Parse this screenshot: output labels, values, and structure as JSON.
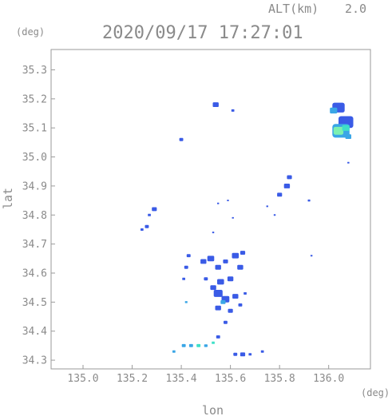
{
  "chart_data": {
    "type": "scatter",
    "title": "2020/09/17 17:27:01",
    "altitude_label": "ALT(km)",
    "altitude_value": "2.0",
    "xlabel": "lon",
    "ylabel": "lat",
    "x_unit": "(deg)",
    "y_unit": "(deg)",
    "xlim": [
      134.87,
      136.17
    ],
    "ylim": [
      34.27,
      35.37
    ],
    "xticks": [
      135.0,
      135.2,
      135.4,
      135.6,
      135.8,
      136.0
    ],
    "xtick_labels": [
      "135.0",
      "135.2",
      "135.4",
      "135.6",
      "135.8",
      "136.0"
    ],
    "yticks": [
      34.3,
      34.4,
      34.5,
      34.6,
      34.7,
      34.8,
      34.9,
      35.0,
      35.1,
      35.2,
      35.3
    ],
    "ytick_labels": [
      "34.3",
      "34.4",
      "34.5",
      "34.6",
      "34.7",
      "34.8",
      "34.9",
      "35.0",
      "35.1",
      "35.2",
      "35.3"
    ],
    "grid": false,
    "colors": {
      "frame": "#9a9a9a",
      "weak": "#3a5be6",
      "moderate": "#3aa6e6",
      "strong": "#3ee0c8",
      "strongest": "#7cf0b0"
    },
    "echo_cells": [
      {
        "lon": 135.54,
        "lat": 35.18,
        "size": 0.012,
        "level": "weak"
      },
      {
        "lon": 135.61,
        "lat": 35.16,
        "size": 0.006,
        "level": "weak"
      },
      {
        "lon": 135.4,
        "lat": 35.06,
        "size": 0.008,
        "level": "weak"
      },
      {
        "lon": 136.04,
        "lat": 35.17,
        "size": 0.025,
        "level": "weak"
      },
      {
        "lon": 136.02,
        "lat": 35.16,
        "size": 0.015,
        "level": "moderate"
      },
      {
        "lon": 136.07,
        "lat": 35.12,
        "size": 0.03,
        "level": "weak"
      },
      {
        "lon": 136.05,
        "lat": 35.09,
        "size": 0.035,
        "level": "moderate"
      },
      {
        "lon": 136.04,
        "lat": 35.09,
        "size": 0.02,
        "level": "strongest"
      },
      {
        "lon": 136.07,
        "lat": 35.1,
        "size": 0.015,
        "level": "strong"
      },
      {
        "lon": 136.08,
        "lat": 35.07,
        "size": 0.012,
        "level": "moderate"
      },
      {
        "lon": 136.08,
        "lat": 34.98,
        "size": 0.004,
        "level": "weak"
      },
      {
        "lon": 135.84,
        "lat": 34.93,
        "size": 0.01,
        "level": "weak"
      },
      {
        "lon": 135.83,
        "lat": 34.9,
        "size": 0.012,
        "level": "weak"
      },
      {
        "lon": 135.8,
        "lat": 34.87,
        "size": 0.01,
        "level": "weak"
      },
      {
        "lon": 135.75,
        "lat": 34.83,
        "size": 0.004,
        "level": "weak"
      },
      {
        "lon": 135.78,
        "lat": 34.8,
        "size": 0.004,
        "level": "weak"
      },
      {
        "lon": 135.92,
        "lat": 34.85,
        "size": 0.005,
        "level": "weak"
      },
      {
        "lon": 135.93,
        "lat": 34.66,
        "size": 0.004,
        "level": "weak"
      },
      {
        "lon": 135.59,
        "lat": 34.85,
        "size": 0.003,
        "level": "weak"
      },
      {
        "lon": 135.61,
        "lat": 34.79,
        "size": 0.003,
        "level": "weak"
      },
      {
        "lon": 135.55,
        "lat": 34.84,
        "size": 0.003,
        "level": "weak"
      },
      {
        "lon": 135.29,
        "lat": 34.82,
        "size": 0.01,
        "level": "weak"
      },
      {
        "lon": 135.27,
        "lat": 34.8,
        "size": 0.006,
        "level": "weak"
      },
      {
        "lon": 135.26,
        "lat": 34.76,
        "size": 0.008,
        "level": "weak"
      },
      {
        "lon": 135.24,
        "lat": 34.75,
        "size": 0.006,
        "level": "weak"
      },
      {
        "lon": 135.53,
        "lat": 34.74,
        "size": 0.004,
        "level": "weak"
      },
      {
        "lon": 135.43,
        "lat": 34.66,
        "size": 0.008,
        "level": "weak"
      },
      {
        "lon": 135.42,
        "lat": 34.62,
        "size": 0.008,
        "level": "weak"
      },
      {
        "lon": 135.41,
        "lat": 34.58,
        "size": 0.006,
        "level": "weak"
      },
      {
        "lon": 135.49,
        "lat": 34.64,
        "size": 0.012,
        "level": "weak"
      },
      {
        "lon": 135.52,
        "lat": 34.65,
        "size": 0.014,
        "level": "weak"
      },
      {
        "lon": 135.55,
        "lat": 34.62,
        "size": 0.012,
        "level": "weak"
      },
      {
        "lon": 135.58,
        "lat": 34.64,
        "size": 0.01,
        "level": "weak"
      },
      {
        "lon": 135.62,
        "lat": 34.66,
        "size": 0.014,
        "level": "weak"
      },
      {
        "lon": 135.65,
        "lat": 34.67,
        "size": 0.01,
        "level": "weak"
      },
      {
        "lon": 135.64,
        "lat": 34.62,
        "size": 0.012,
        "level": "weak"
      },
      {
        "lon": 135.6,
        "lat": 34.58,
        "size": 0.012,
        "level": "weak"
      },
      {
        "lon": 135.56,
        "lat": 34.57,
        "size": 0.014,
        "level": "weak"
      },
      {
        "lon": 135.53,
        "lat": 34.55,
        "size": 0.012,
        "level": "weak"
      },
      {
        "lon": 135.5,
        "lat": 34.58,
        "size": 0.008,
        "level": "weak"
      },
      {
        "lon": 135.55,
        "lat": 34.53,
        "size": 0.018,
        "level": "weak"
      },
      {
        "lon": 135.58,
        "lat": 34.51,
        "size": 0.016,
        "level": "weak"
      },
      {
        "lon": 135.62,
        "lat": 34.52,
        "size": 0.012,
        "level": "weak"
      },
      {
        "lon": 135.57,
        "lat": 34.5,
        "size": 0.01,
        "level": "moderate"
      },
      {
        "lon": 135.55,
        "lat": 34.48,
        "size": 0.012,
        "level": "weak"
      },
      {
        "lon": 135.6,
        "lat": 34.47,
        "size": 0.01,
        "level": "weak"
      },
      {
        "lon": 135.64,
        "lat": 34.49,
        "size": 0.008,
        "level": "weak"
      },
      {
        "lon": 135.66,
        "lat": 34.53,
        "size": 0.006,
        "level": "weak"
      },
      {
        "lon": 135.58,
        "lat": 34.43,
        "size": 0.008,
        "level": "weak"
      },
      {
        "lon": 135.55,
        "lat": 34.38,
        "size": 0.008,
        "level": "weak"
      },
      {
        "lon": 135.42,
        "lat": 34.5,
        "size": 0.005,
        "level": "moderate"
      },
      {
        "lon": 135.65,
        "lat": 34.32,
        "size": 0.01,
        "level": "weak"
      },
      {
        "lon": 135.62,
        "lat": 34.32,
        "size": 0.008,
        "level": "weak"
      },
      {
        "lon": 135.68,
        "lat": 34.32,
        "size": 0.006,
        "level": "weak"
      },
      {
        "lon": 135.73,
        "lat": 34.33,
        "size": 0.006,
        "level": "weak"
      },
      {
        "lon": 135.37,
        "lat": 34.33,
        "size": 0.006,
        "level": "moderate"
      },
      {
        "lon": 135.41,
        "lat": 34.35,
        "size": 0.008,
        "level": "moderate"
      },
      {
        "lon": 135.44,
        "lat": 34.35,
        "size": 0.008,
        "level": "moderate"
      },
      {
        "lon": 135.47,
        "lat": 34.35,
        "size": 0.008,
        "level": "strong"
      },
      {
        "lon": 135.5,
        "lat": 34.35,
        "size": 0.007,
        "level": "moderate"
      },
      {
        "lon": 135.53,
        "lat": 34.36,
        "size": 0.006,
        "level": "strong"
      }
    ]
  }
}
